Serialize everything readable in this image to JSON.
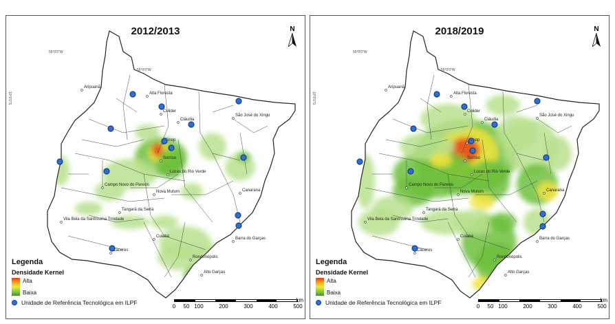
{
  "panels": [
    {
      "title": "2012/2013",
      "north_label": "N",
      "graticule_top": "55°0'0\"W",
      "graticule_left": "10°0'0\"S",
      "legend": {
        "title": "Legenda",
        "subtitle": "Densidade Kernel",
        "high": "Alta",
        "low": "Baixa",
        "unit_label": "Unidade de Referência Tecnológica em ILPF"
      },
      "scale": {
        "ticks": [
          "0",
          "50",
          "100",
          "200",
          "300",
          "400",
          "500"
        ],
        "unit": "km"
      },
      "places": [
        "Aripuanã",
        "Alta Floresta",
        "Colider",
        "Cláudia",
        "São José do Xingu",
        "Sinop",
        "Sorriso",
        "Lucas do Rio Verde",
        "Campo Novo do Parecis",
        "Nova Mutum",
        "Canarana",
        "Tangará da Serra",
        "Vila Bela da Santíssima Trindade",
        "Cuiabá",
        "Barra do Garças",
        "Cáceres",
        "Rondonópolis",
        "Alto Garças"
      ]
    },
    {
      "title": "2018/2019",
      "north_label": "N",
      "graticule_top": "55°0'0\"W",
      "graticule_left": "10°0'0\"S",
      "legend": {
        "title": "Legenda",
        "subtitle": "Densidade Kernel",
        "high": "Alta",
        "low": "Baixa",
        "unit_label": "Unidade de Referência Tecnológica em ILPF"
      },
      "scale": {
        "ticks": [
          "0",
          "50",
          "100",
          "200",
          "300",
          "400",
          "500"
        ],
        "unit": "km"
      },
      "places": [
        "Aripuanã",
        "Alta Floresta",
        "Colider",
        "Cláudia",
        "São José do Xingu",
        "Sinop",
        "Sorriso",
        "Lucas do Rio Verde",
        "Campo Novo do Parecis",
        "Nova Mutum",
        "Canarana",
        "Tangará da Serra",
        "Vila Bela da Santíssima Trindade",
        "Cuiabá",
        "Barra do Garças",
        "Cáceres",
        "Rondonópolis",
        "Alto Garças"
      ]
    }
  ],
  "colors": {
    "high": "#e83a14",
    "mid": "#f0ea3a",
    "low": "#3c9a2a",
    "faint": "#dff2c4",
    "unit_dot": "#2f6fd0"
  }
}
